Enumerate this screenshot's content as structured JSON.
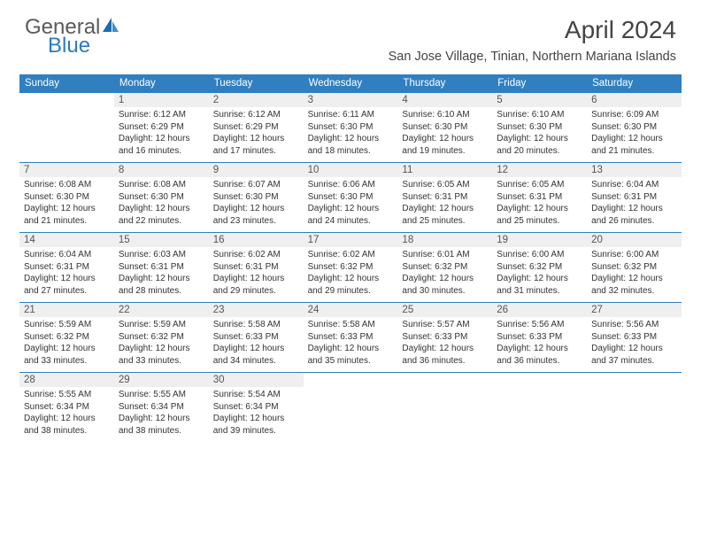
{
  "logo": {
    "general": "General",
    "blue": "Blue"
  },
  "title": "April 2024",
  "location": "San Jose Village, Tinian, Northern Mariana Islands",
  "colors": {
    "header_bg": "#2f7fc1",
    "daynum_bg": "#efefef",
    "text": "#333333",
    "title_text": "#444444"
  },
  "weekdays": [
    "Sunday",
    "Monday",
    "Tuesday",
    "Wednesday",
    "Thursday",
    "Friday",
    "Saturday"
  ],
  "weeks": [
    [
      {
        "n": "",
        "sr": "",
        "ss": "",
        "dl": ""
      },
      {
        "n": "1",
        "sr": "Sunrise: 6:12 AM",
        "ss": "Sunset: 6:29 PM",
        "dl": "Daylight: 12 hours and 16 minutes."
      },
      {
        "n": "2",
        "sr": "Sunrise: 6:12 AM",
        "ss": "Sunset: 6:29 PM",
        "dl": "Daylight: 12 hours and 17 minutes."
      },
      {
        "n": "3",
        "sr": "Sunrise: 6:11 AM",
        "ss": "Sunset: 6:30 PM",
        "dl": "Daylight: 12 hours and 18 minutes."
      },
      {
        "n": "4",
        "sr": "Sunrise: 6:10 AM",
        "ss": "Sunset: 6:30 PM",
        "dl": "Daylight: 12 hours and 19 minutes."
      },
      {
        "n": "5",
        "sr": "Sunrise: 6:10 AM",
        "ss": "Sunset: 6:30 PM",
        "dl": "Daylight: 12 hours and 20 minutes."
      },
      {
        "n": "6",
        "sr": "Sunrise: 6:09 AM",
        "ss": "Sunset: 6:30 PM",
        "dl": "Daylight: 12 hours and 21 minutes."
      }
    ],
    [
      {
        "n": "7",
        "sr": "Sunrise: 6:08 AM",
        "ss": "Sunset: 6:30 PM",
        "dl": "Daylight: 12 hours and 21 minutes."
      },
      {
        "n": "8",
        "sr": "Sunrise: 6:08 AM",
        "ss": "Sunset: 6:30 PM",
        "dl": "Daylight: 12 hours and 22 minutes."
      },
      {
        "n": "9",
        "sr": "Sunrise: 6:07 AM",
        "ss": "Sunset: 6:30 PM",
        "dl": "Daylight: 12 hours and 23 minutes."
      },
      {
        "n": "10",
        "sr": "Sunrise: 6:06 AM",
        "ss": "Sunset: 6:30 PM",
        "dl": "Daylight: 12 hours and 24 minutes."
      },
      {
        "n": "11",
        "sr": "Sunrise: 6:05 AM",
        "ss": "Sunset: 6:31 PM",
        "dl": "Daylight: 12 hours and 25 minutes."
      },
      {
        "n": "12",
        "sr": "Sunrise: 6:05 AM",
        "ss": "Sunset: 6:31 PM",
        "dl": "Daylight: 12 hours and 25 minutes."
      },
      {
        "n": "13",
        "sr": "Sunrise: 6:04 AM",
        "ss": "Sunset: 6:31 PM",
        "dl": "Daylight: 12 hours and 26 minutes."
      }
    ],
    [
      {
        "n": "14",
        "sr": "Sunrise: 6:04 AM",
        "ss": "Sunset: 6:31 PM",
        "dl": "Daylight: 12 hours and 27 minutes."
      },
      {
        "n": "15",
        "sr": "Sunrise: 6:03 AM",
        "ss": "Sunset: 6:31 PM",
        "dl": "Daylight: 12 hours and 28 minutes."
      },
      {
        "n": "16",
        "sr": "Sunrise: 6:02 AM",
        "ss": "Sunset: 6:31 PM",
        "dl": "Daylight: 12 hours and 29 minutes."
      },
      {
        "n": "17",
        "sr": "Sunrise: 6:02 AM",
        "ss": "Sunset: 6:32 PM",
        "dl": "Daylight: 12 hours and 29 minutes."
      },
      {
        "n": "18",
        "sr": "Sunrise: 6:01 AM",
        "ss": "Sunset: 6:32 PM",
        "dl": "Daylight: 12 hours and 30 minutes."
      },
      {
        "n": "19",
        "sr": "Sunrise: 6:00 AM",
        "ss": "Sunset: 6:32 PM",
        "dl": "Daylight: 12 hours and 31 minutes."
      },
      {
        "n": "20",
        "sr": "Sunrise: 6:00 AM",
        "ss": "Sunset: 6:32 PM",
        "dl": "Daylight: 12 hours and 32 minutes."
      }
    ],
    [
      {
        "n": "21",
        "sr": "Sunrise: 5:59 AM",
        "ss": "Sunset: 6:32 PM",
        "dl": "Daylight: 12 hours and 33 minutes."
      },
      {
        "n": "22",
        "sr": "Sunrise: 5:59 AM",
        "ss": "Sunset: 6:32 PM",
        "dl": "Daylight: 12 hours and 33 minutes."
      },
      {
        "n": "23",
        "sr": "Sunrise: 5:58 AM",
        "ss": "Sunset: 6:33 PM",
        "dl": "Daylight: 12 hours and 34 minutes."
      },
      {
        "n": "24",
        "sr": "Sunrise: 5:58 AM",
        "ss": "Sunset: 6:33 PM",
        "dl": "Daylight: 12 hours and 35 minutes."
      },
      {
        "n": "25",
        "sr": "Sunrise: 5:57 AM",
        "ss": "Sunset: 6:33 PM",
        "dl": "Daylight: 12 hours and 36 minutes."
      },
      {
        "n": "26",
        "sr": "Sunrise: 5:56 AM",
        "ss": "Sunset: 6:33 PM",
        "dl": "Daylight: 12 hours and 36 minutes."
      },
      {
        "n": "27",
        "sr": "Sunrise: 5:56 AM",
        "ss": "Sunset: 6:33 PM",
        "dl": "Daylight: 12 hours and 37 minutes."
      }
    ],
    [
      {
        "n": "28",
        "sr": "Sunrise: 5:55 AM",
        "ss": "Sunset: 6:34 PM",
        "dl": "Daylight: 12 hours and 38 minutes."
      },
      {
        "n": "29",
        "sr": "Sunrise: 5:55 AM",
        "ss": "Sunset: 6:34 PM",
        "dl": "Daylight: 12 hours and 38 minutes."
      },
      {
        "n": "30",
        "sr": "Sunrise: 5:54 AM",
        "ss": "Sunset: 6:34 PM",
        "dl": "Daylight: 12 hours and 39 minutes."
      },
      {
        "n": "",
        "sr": "",
        "ss": "",
        "dl": ""
      },
      {
        "n": "",
        "sr": "",
        "ss": "",
        "dl": ""
      },
      {
        "n": "",
        "sr": "",
        "ss": "",
        "dl": ""
      },
      {
        "n": "",
        "sr": "",
        "ss": "",
        "dl": ""
      }
    ]
  ]
}
